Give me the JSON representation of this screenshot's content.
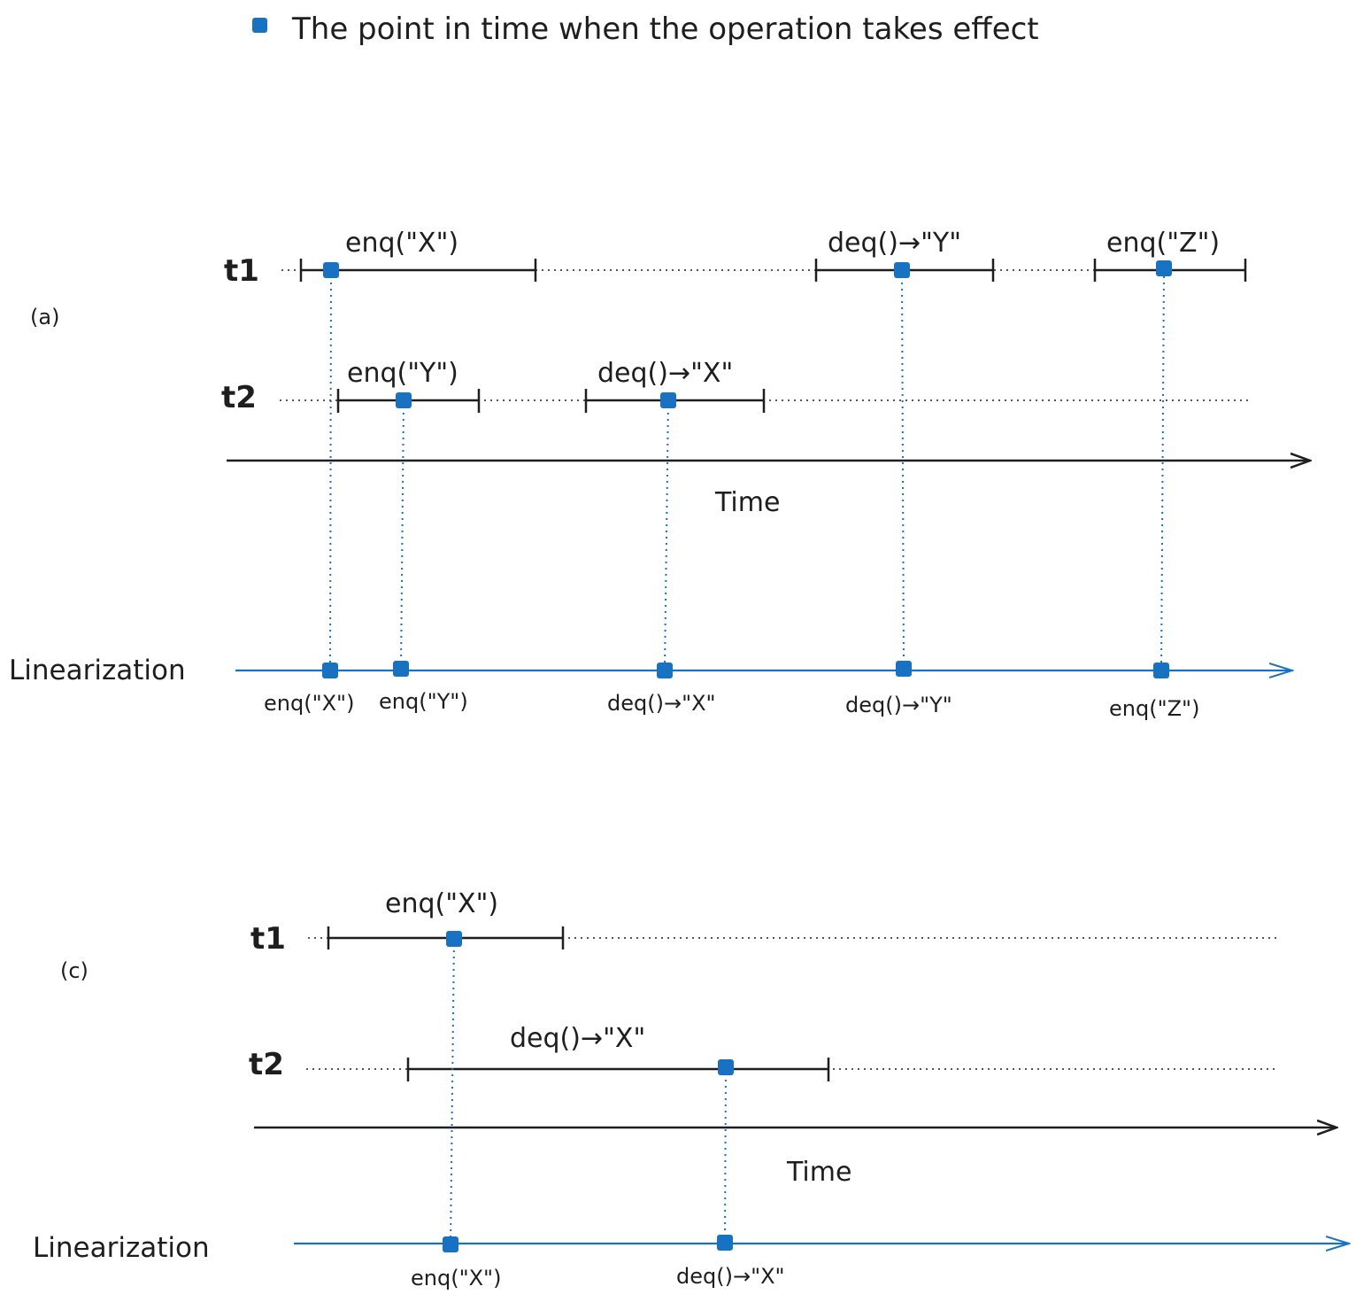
{
  "legend": {
    "text": "The point in time when the operation takes effect",
    "marker_color": "#1971c2"
  },
  "colors": {
    "ink": "#1e1e1e",
    "accent": "#1971c2"
  },
  "panels": [
    {
      "id": "a",
      "label": "(a)",
      "time_label": "Time",
      "linearization_label": "Linearization",
      "threads": [
        {
          "name": "t1",
          "ops": [
            {
              "label": "enq(\"X\")",
              "order": 1
            },
            {
              "label": "deq()→\"Y\"",
              "order": 4
            },
            {
              "label": "enq(\"Z\")",
              "order": 5
            }
          ]
        },
        {
          "name": "t2",
          "ops": [
            {
              "label": "enq(\"Y\")",
              "order": 2
            },
            {
              "label": "deq()→\"X\"",
              "order": 3
            }
          ]
        }
      ],
      "linearization": [
        "enq(\"X\")",
        "enq(\"Y\")",
        "deq()→\"X\"",
        "deq()→\"Y\"",
        "enq(\"Z\")"
      ]
    },
    {
      "id": "c",
      "label": "(c)",
      "time_label": "Time",
      "linearization_label": "Linearization",
      "threads": [
        {
          "name": "t1",
          "ops": [
            {
              "label": "enq(\"X\")",
              "order": 1
            }
          ]
        },
        {
          "name": "t2",
          "ops": [
            {
              "label": "deq()→\"X\"",
              "order": 2
            }
          ]
        }
      ],
      "linearization": [
        "enq(\"X\")",
        "deq()→\"X\""
      ]
    }
  ]
}
